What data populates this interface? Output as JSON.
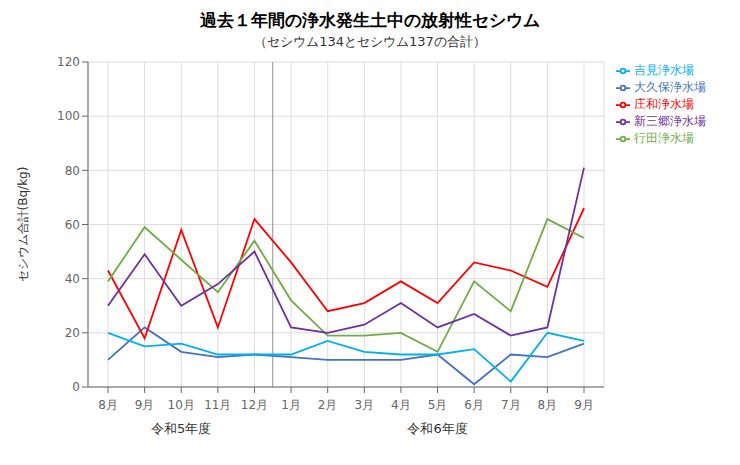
{
  "chart_data": {
    "type": "line",
    "title": "過去１年間の浄水発生土中の放射性セシウム",
    "subtitle": "（セシウム134とセシウム137の合計）",
    "y_label": "セシウム合計(Bq/kg)",
    "categories": [
      "8月",
      "9月",
      "10月",
      "11月",
      "12月",
      "1月",
      "2月",
      "3月",
      "4月",
      "5月",
      "6月",
      "7月",
      "8月",
      "9月"
    ],
    "series": [
      {
        "name": "大久保浄水場",
        "color": "#4472C4",
        "values": [
          10,
          22,
          13,
          11,
          12,
          11,
          10,
          10,
          10,
          12,
          1,
          12,
          11,
          16
        ]
      },
      {
        "name": "庄和浄水場",
        "color": "#FF0000",
        "values": [
          43,
          18,
          58,
          22,
          62,
          46,
          28,
          31,
          39,
          31,
          46,
          43,
          37,
          66
        ]
      },
      {
        "name": "行田浄水場",
        "color": "#70AD47",
        "values": [
          39,
          59,
          47,
          35,
          54,
          32,
          19,
          19,
          20,
          13,
          39,
          28,
          62,
          55
        ]
      },
      {
        "name": "新三郷浄水場",
        "color": "#7030A0",
        "values": [
          30,
          49,
          30,
          38,
          50,
          22,
          20,
          23,
          31,
          22,
          27,
          19,
          22,
          81
        ]
      },
      {
        "name": "吉見浄水場",
        "color": "#00B0F0",
        "values": [
          20,
          15,
          16,
          12,
          12,
          12,
          17,
          13,
          12,
          12,
          14,
          2,
          20,
          17
        ]
      }
    ],
    "ylim": [
      0,
      120
    ],
    "yticks": [
      0,
      20,
      40,
      60,
      80,
      100,
      120
    ],
    "vlines": [
      4.5
    ],
    "annotations": [
      {
        "text": "令和5年度",
        "x": 2
      },
      {
        "text": "令和6年度",
        "x": 9
      }
    ],
    "grid": true,
    "legend": "upper right"
  }
}
